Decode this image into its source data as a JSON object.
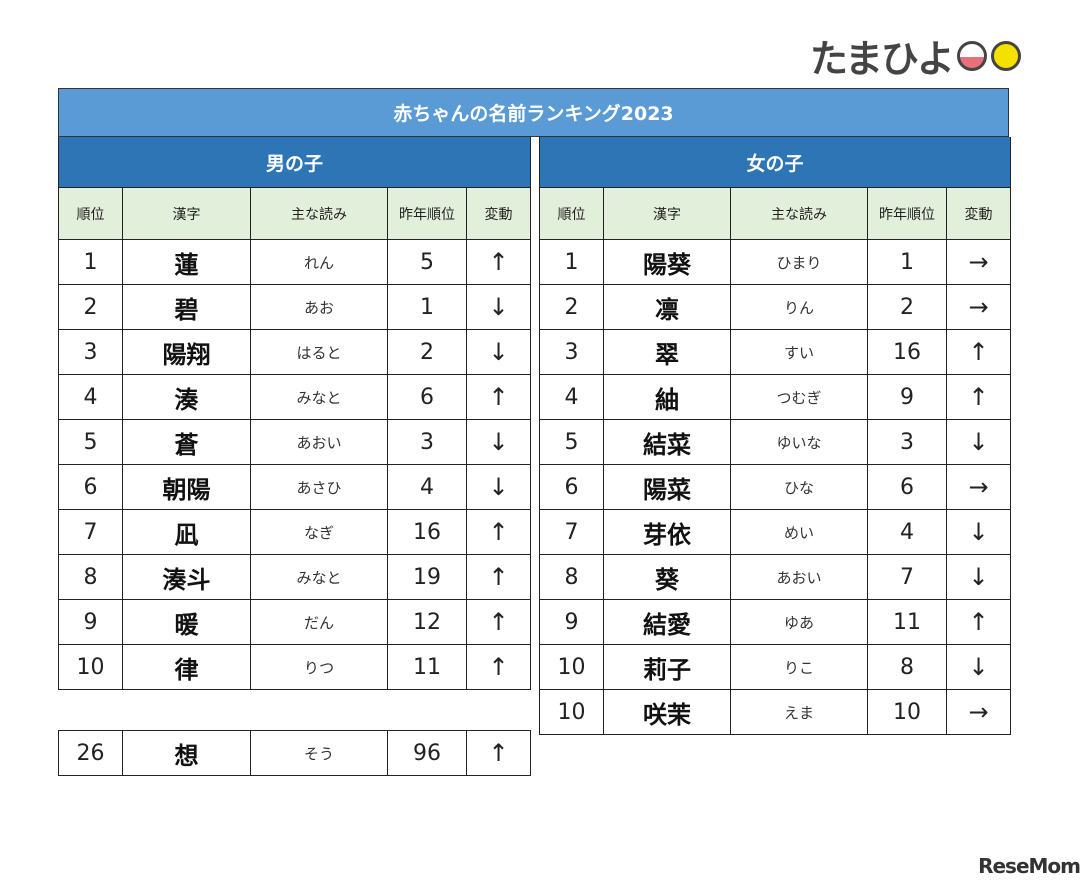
{
  "logo": {
    "text": "たまひよ"
  },
  "title": "赤ちゃんの名前ランキング2023",
  "columns": [
    "順位",
    "漢字",
    "主な読み",
    "昨年順位",
    "変動"
  ],
  "boys": {
    "label": "男の子",
    "rows": [
      [
        "1",
        "蓮",
        "れん",
        "5",
        "↑"
      ],
      [
        "2",
        "碧",
        "あお",
        "1",
        "↓"
      ],
      [
        "3",
        "陽翔",
        "はると",
        "2",
        "↓"
      ],
      [
        "4",
        "湊",
        "みなと",
        "6",
        "↑"
      ],
      [
        "5",
        "蒼",
        "あおい",
        "3",
        "↓"
      ],
      [
        "6",
        "朝陽",
        "あさひ",
        "4",
        "↓"
      ],
      [
        "7",
        "凪",
        "なぎ",
        "16",
        "↑"
      ],
      [
        "8",
        "湊斗",
        "みなと",
        "19",
        "↑"
      ],
      [
        "9",
        "暖",
        "だん",
        "12",
        "↑"
      ],
      [
        "10",
        "律",
        "りつ",
        "11",
        "↑"
      ]
    ],
    "extra": [
      "26",
      "想",
      "そう",
      "96",
      "↑"
    ]
  },
  "girls": {
    "label": "女の子",
    "rows": [
      [
        "1",
        "陽葵",
        "ひまり",
        "1",
        "→"
      ],
      [
        "2",
        "凛",
        "りん",
        "2",
        "→"
      ],
      [
        "3",
        "翠",
        "すい",
        "16",
        "↑"
      ],
      [
        "4",
        "紬",
        "つむぎ",
        "9",
        "↑"
      ],
      [
        "5",
        "結菜",
        "ゆいな",
        "3",
        "↓"
      ],
      [
        "6",
        "陽菜",
        "ひな",
        "6",
        "→"
      ],
      [
        "7",
        "芽依",
        "めい",
        "4",
        "↓"
      ],
      [
        "8",
        "葵",
        "あおい",
        "7",
        "↓"
      ],
      [
        "9",
        "結愛",
        "ゆあ",
        "11",
        "↑"
      ],
      [
        "10",
        "莉子",
        "りこ",
        "8",
        "↓"
      ],
      [
        "10",
        "咲茉",
        "えま",
        "10",
        "→"
      ]
    ]
  },
  "watermark": "ReseMom"
}
